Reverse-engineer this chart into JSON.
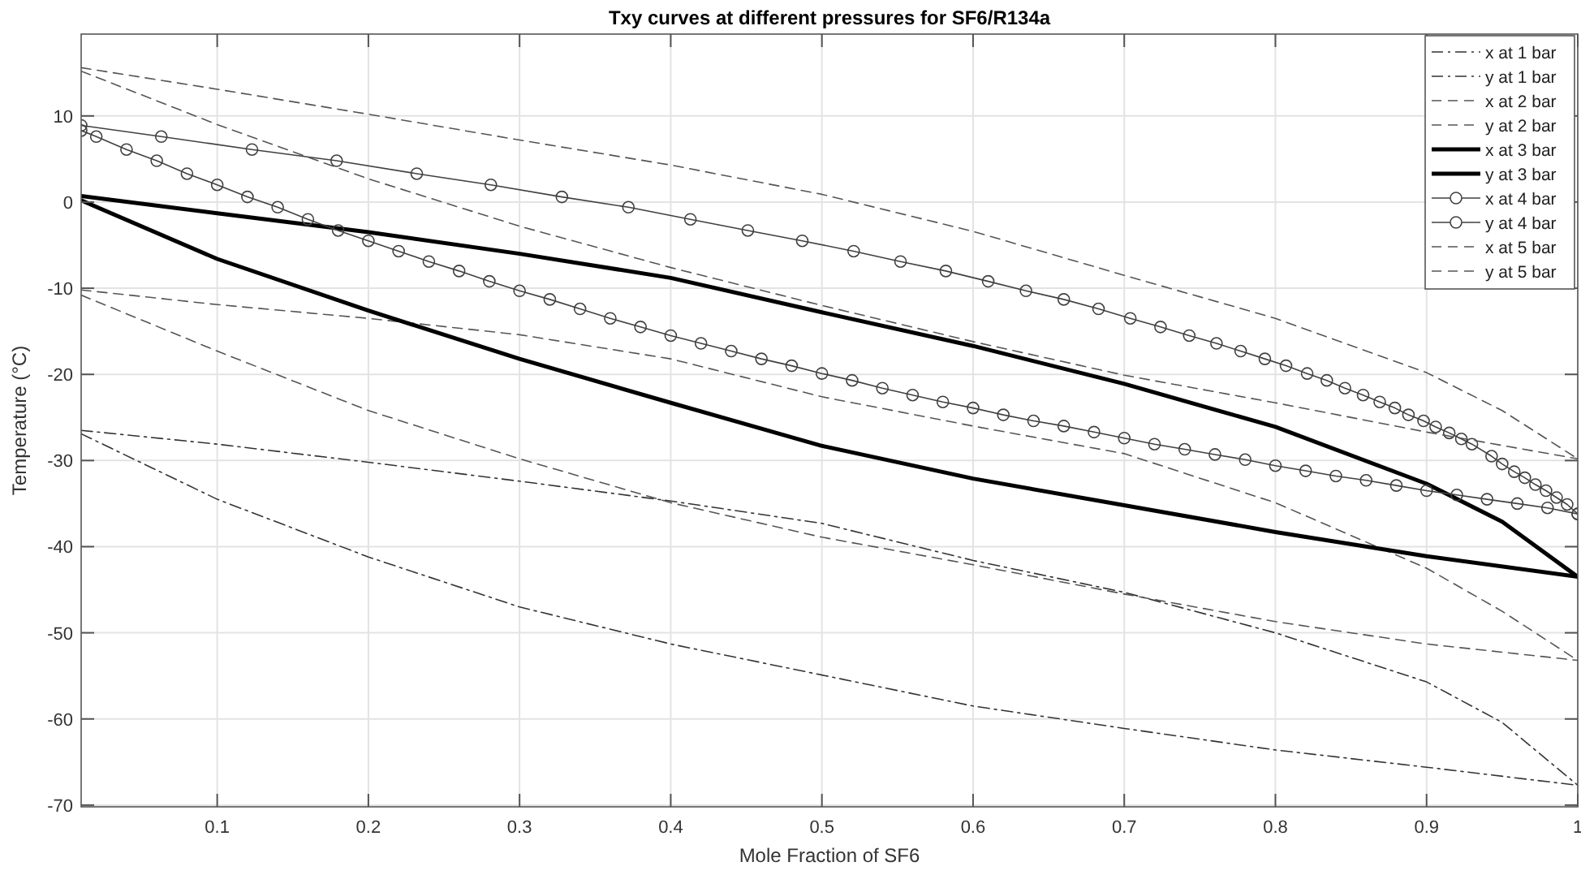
{
  "chart_data": {
    "type": "line",
    "title": "Txy curves at different pressures for SF6/R134a",
    "xlabel": "Mole Fraction of SF6",
    "ylabel": "Temperature (°C)",
    "xlim": [
      0.01,
      1
    ],
    "ylim": [
      -70.2,
      19.5
    ],
    "xticks": [
      0.1,
      0.2,
      0.3,
      0.4,
      0.5,
      0.6,
      0.7,
      0.8,
      0.9,
      1
    ],
    "yticks": [
      -70,
      -60,
      -50,
      -40,
      -30,
      -20,
      -10,
      0,
      10
    ],
    "grid": true,
    "legend": "top right",
    "series": [
      {
        "name": "x at 1 bar",
        "color": "#333333",
        "line_style": "dashdot",
        "marker": "none",
        "x": [
          0.01,
          0.1,
          0.2,
          0.3,
          0.4,
          0.5,
          0.6,
          0.7,
          0.8,
          0.9,
          1
        ],
        "values": [
          -26.9,
          -34.5,
          -41.2,
          -47,
          -51.3,
          -54.9,
          -58.5,
          -61.1,
          -63.6,
          -65.6,
          -67.7
        ]
      },
      {
        "name": "y at 1 bar",
        "color": "#333333",
        "line_style": "dashdot",
        "marker": "none",
        "x": [
          0.01,
          0.1,
          0.2,
          0.3,
          0.4,
          0.5,
          0.6,
          0.7,
          0.8,
          0.9,
          0.95,
          1
        ],
        "values": [
          -26.5,
          -28.1,
          -30.2,
          -32.4,
          -34.7,
          -37.3,
          -41.6,
          -45.3,
          -50,
          -55.7,
          -60.4,
          -67.7
        ]
      },
      {
        "name": "x at 2 bar",
        "color": "#555555",
        "line_style": "dashed",
        "marker": "none",
        "x": [
          0.01,
          0.1,
          0.2,
          0.3,
          0.4,
          0.5,
          0.6,
          0.7,
          0.8,
          0.9,
          1
        ],
        "values": [
          -10.8,
          -17.3,
          -24.2,
          -29.8,
          -34.9,
          -38.9,
          -42.1,
          -45.5,
          -48.7,
          -51.3,
          -53.2
        ]
      },
      {
        "name": "y at 2 bar",
        "color": "#555555",
        "line_style": "dashed",
        "marker": "none",
        "x": [
          0.01,
          0.1,
          0.2,
          0.3,
          0.4,
          0.5,
          0.6,
          0.7,
          0.8,
          0.9,
          0.95,
          1
        ],
        "values": [
          -10.2,
          -11.9,
          -13.5,
          -15.4,
          -18.2,
          -22.6,
          -26,
          -29.2,
          -34.9,
          -42.5,
          -47.5,
          -53.2
        ]
      },
      {
        "name": "x at 3 bar",
        "color": "#000000",
        "line_style": "solid",
        "marker": "none",
        "x": [
          0.01,
          0.1,
          0.2,
          0.3,
          0.4,
          0.5,
          0.6,
          0.7,
          0.8,
          0.9,
          1
        ],
        "values": [
          0.2,
          -6.6,
          -12.6,
          -18.2,
          -23.3,
          -28.3,
          -32.1,
          -35.2,
          -38.3,
          -41.1,
          -43.5
        ]
      },
      {
        "name": "y at 3 bar",
        "color": "#000000",
        "line_style": "solid",
        "marker": "none",
        "x": [
          0.01,
          0.1,
          0.2,
          0.3,
          0.4,
          0.5,
          0.6,
          0.7,
          0.8,
          0.9,
          0.95,
          1
        ],
        "values": [
          0.7,
          -1.3,
          -3.5,
          -6,
          -8.8,
          -12.8,
          -16.7,
          -21.1,
          -26.1,
          -32.7,
          -37.1,
          -43.5
        ]
      },
      {
        "name": "x at 4 bar",
        "color": "#404040",
        "line_style": "solid",
        "marker": "circle",
        "x": [
          0.01,
          0.02,
          0.04,
          0.06,
          0.08,
          0.1,
          0.12,
          0.14,
          0.16,
          0.18,
          0.2,
          0.22,
          0.24,
          0.26,
          0.28,
          0.3,
          0.32,
          0.34,
          0.36,
          0.38,
          0.4,
          0.42,
          0.44,
          0.46,
          0.48,
          0.5,
          0.52,
          0.54,
          0.56,
          0.58,
          0.6,
          0.62,
          0.64,
          0.66,
          0.68,
          0.7,
          0.72,
          0.74,
          0.76,
          0.78,
          0.8,
          0.82,
          0.84,
          0.86,
          0.88,
          0.9,
          0.92,
          0.94,
          0.96,
          0.98,
          1
        ],
        "values": [
          8.3,
          7.6,
          6.1,
          4.8,
          3.3,
          2,
          0.6,
          -0.6,
          -2,
          -3.3,
          -4.5,
          -5.7,
          -6.9,
          -8,
          -9.2,
          -10.3,
          -11.3,
          -12.4,
          -13.5,
          -14.5,
          -15.5,
          -16.4,
          -17.3,
          -18.2,
          -19,
          -19.9,
          -20.7,
          -21.6,
          -22.4,
          -23.2,
          -23.9,
          -24.7,
          -25.4,
          -26,
          -26.7,
          -27.4,
          -28.1,
          -28.7,
          -29.3,
          -29.9,
          -30.6,
          -31.2,
          -31.8,
          -32.3,
          -32.9,
          -33.5,
          -34,
          -34.5,
          -35,
          -35.5,
          -36.2
        ]
      },
      {
        "name": "y at 4 bar",
        "color": "#404040",
        "line_style": "solid",
        "marker": "circle",
        "x": [
          0.01,
          0.063,
          0.123,
          0.179,
          0.232,
          0.281,
          0.328,
          0.372,
          0.413,
          0.451,
          0.487,
          0.521,
          0.552,
          0.582,
          0.61,
          0.635,
          0.66,
          0.683,
          0.704,
          0.724,
          0.743,
          0.761,
          0.777,
          0.793,
          0.807,
          0.821,
          0.834,
          0.846,
          0.858,
          0.869,
          0.879,
          0.888,
          0.898,
          0.906,
          0.915,
          0.923,
          0.93,
          0.943,
          0.95,
          0.958,
          0.965,
          0.972,
          0.979,
          0.986,
          0.993,
          1
        ],
        "values": [
          8.9,
          7.6,
          6.1,
          4.8,
          3.3,
          2,
          0.6,
          -0.6,
          -2,
          -3.3,
          -4.5,
          -5.7,
          -6.9,
          -8,
          -9.2,
          -10.3,
          -11.3,
          -12.4,
          -13.5,
          -14.5,
          -15.5,
          -16.4,
          -17.3,
          -18.2,
          -19,
          -19.9,
          -20.7,
          -21.6,
          -22.4,
          -23.2,
          -23.9,
          -24.7,
          -25.4,
          -26.1,
          -26.8,
          -27.5,
          -28.1,
          -29.5,
          -30.4,
          -31.3,
          -32,
          -32.8,
          -33.5,
          -34.3,
          -35.1,
          -36.2
        ]
      },
      {
        "name": "x at 5 bar",
        "color": "#555555",
        "line_style": "dashed",
        "marker": "none",
        "x": [
          0.01,
          0.1,
          0.2,
          0.3,
          0.4,
          0.5,
          0.6,
          0.7,
          0.8,
          0.9,
          1
        ],
        "values": [
          15.2,
          9,
          2.7,
          -2.8,
          -7.6,
          -12,
          -16.2,
          -20.1,
          -23.3,
          -26.7,
          -29.8
        ]
      },
      {
        "name": "y at 5 bar",
        "color": "#555555",
        "line_style": "dashed",
        "marker": "none",
        "x": [
          0.01,
          0.1,
          0.2,
          0.3,
          0.4,
          0.5,
          0.6,
          0.7,
          0.8,
          0.9,
          0.95,
          1
        ],
        "values": [
          15.6,
          13.1,
          10.2,
          7.2,
          4.3,
          0.9,
          -3.4,
          -8.5,
          -13.5,
          -19.8,
          -24.2,
          -29.8
        ]
      }
    ]
  }
}
